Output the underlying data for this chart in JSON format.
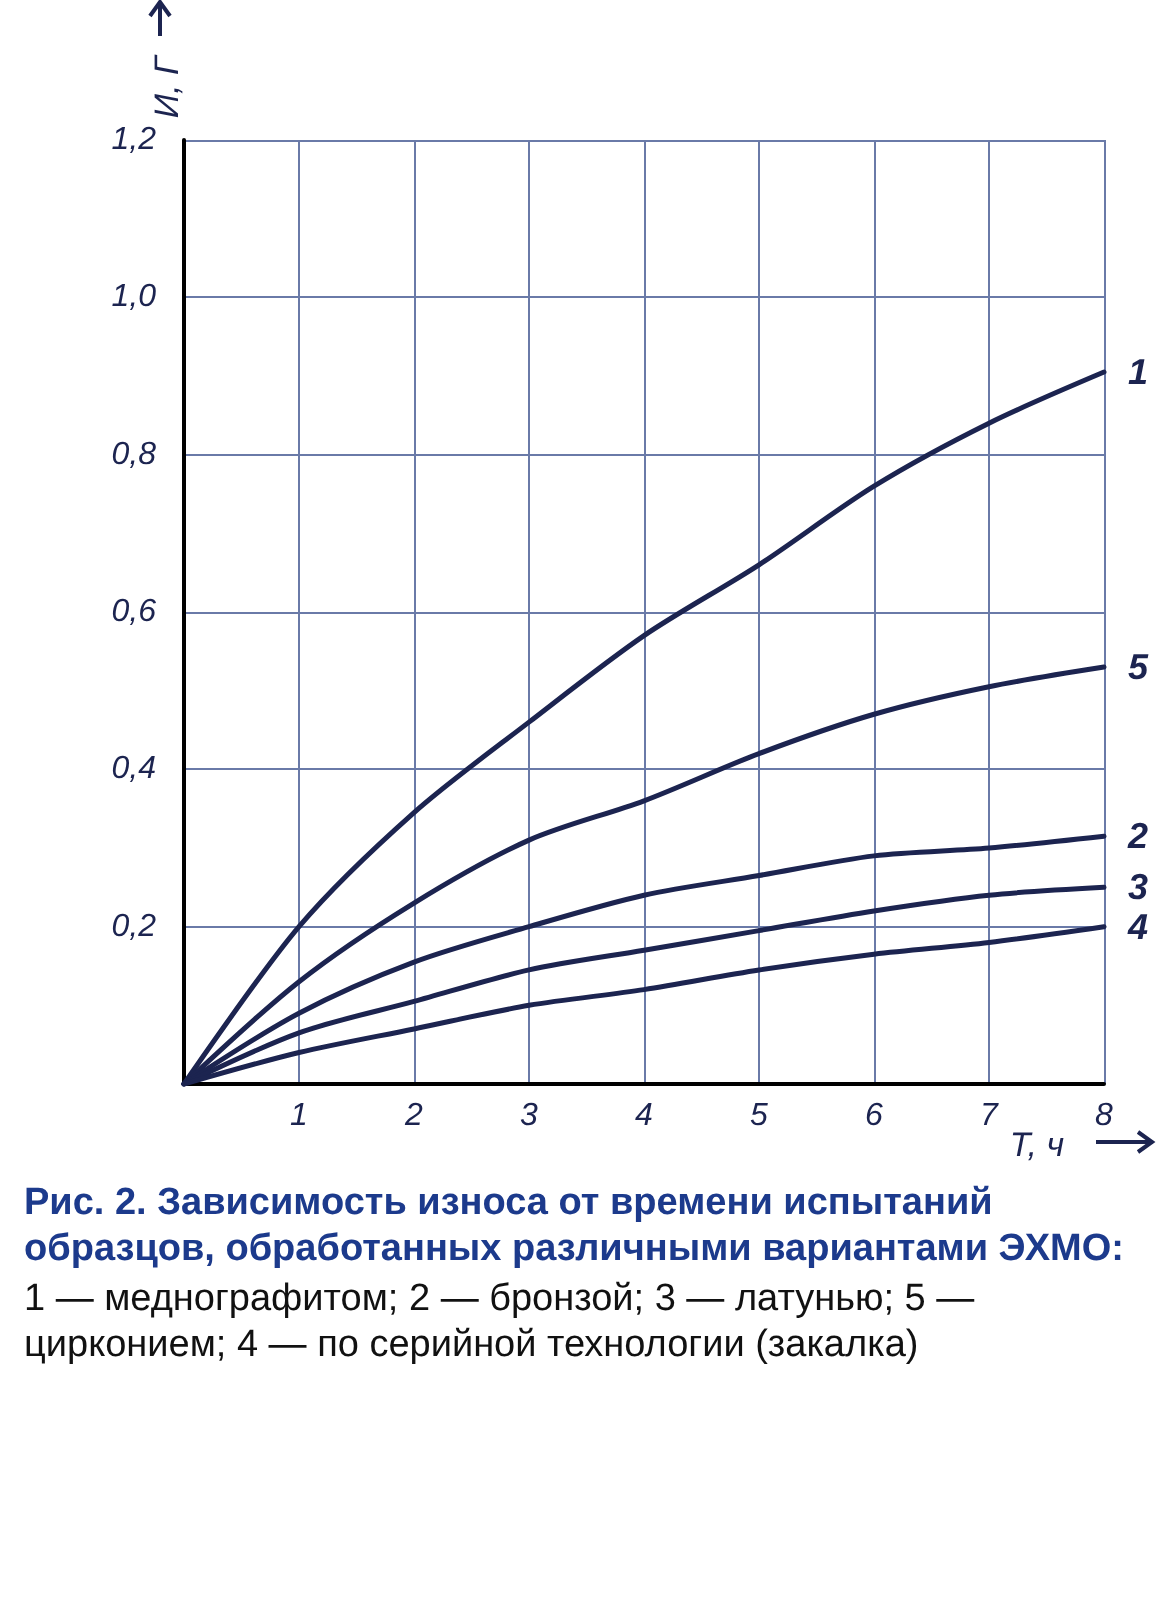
{
  "chart_data": {
    "type": "line",
    "title": "Рис. 2. Зависимость износа от времени испытаний образцов, обработанных различными вариантами ЭХМО:",
    "subtitle": "1 — меднографитом; 2 — бронзой; 3 — латунью; 5 — цирконием; 4 — по серийной технологии (закалка)",
    "xlabel": "Т, ч",
    "ylabel": "И, Г",
    "x": [
      0,
      1,
      2,
      3,
      4,
      5,
      6,
      7,
      8
    ],
    "series": [
      {
        "name": "1",
        "color": "#1c2450",
        "values": [
          0,
          0.2,
          0.345,
          0.46,
          0.57,
          0.66,
          0.76,
          0.84,
          0.905
        ]
      },
      {
        "name": "5",
        "color": "#1c2450",
        "values": [
          0,
          0.13,
          0.23,
          0.31,
          0.36,
          0.42,
          0.47,
          0.505,
          0.53
        ]
      },
      {
        "name": "2",
        "color": "#1c2450",
        "values": [
          0,
          0.09,
          0.155,
          0.2,
          0.24,
          0.265,
          0.29,
          0.3,
          0.315
        ]
      },
      {
        "name": "3",
        "color": "#1c2450",
        "values": [
          0,
          0.065,
          0.105,
          0.145,
          0.17,
          0.195,
          0.22,
          0.24,
          0.25
        ]
      },
      {
        "name": "4",
        "color": "#1c2450",
        "values": [
          0,
          0.04,
          0.07,
          0.1,
          0.12,
          0.145,
          0.165,
          0.18,
          0.2
        ]
      }
    ],
    "xlim": [
      0,
      8
    ],
    "xticks": [
      1,
      2,
      3,
      4,
      5,
      6,
      7,
      8
    ],
    "ylim": [
      0,
      1.2
    ],
    "yticks": [
      {
        "value": 0.2,
        "label": "0,2"
      },
      {
        "value": 0.4,
        "label": "0,4"
      },
      {
        "value": 0.6,
        "label": "0,6"
      },
      {
        "value": 0.8,
        "label": "0,8"
      },
      {
        "value": 1.0,
        "label": "1,0"
      },
      {
        "value": 1.2,
        "label": "1,2"
      }
    ],
    "grid": true,
    "legend": false,
    "marker": "none",
    "line_style": "solid"
  }
}
